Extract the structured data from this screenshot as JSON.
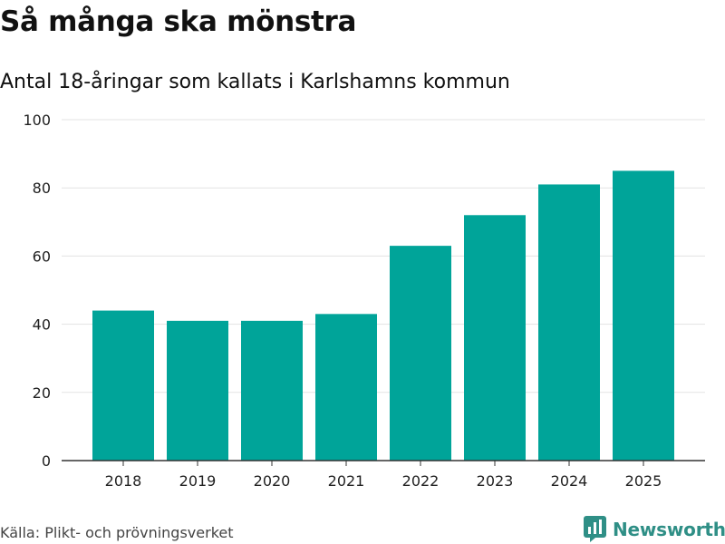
{
  "header": {
    "title": "Så många ska mönstra",
    "subtitle": "Antal 18-åringar som kallats i Karlshamns kommun"
  },
  "footer": {
    "source": "Källa: Plikt- och prövningsverket",
    "brand": "Newsworthy",
    "brand_icon": "bar-chart-logo-icon"
  },
  "colors": {
    "bar": "#00a499",
    "brand": "#2f8f86",
    "grid": "#e3e3e3",
    "axis": "#333333"
  },
  "chart_data": {
    "type": "bar",
    "title": "Så många ska mönstra",
    "subtitle": "Antal 18-åringar som kallats i Karlshamns kommun",
    "categories": [
      "2018",
      "2019",
      "2020",
      "2021",
      "2022",
      "2023",
      "2024",
      "2025"
    ],
    "values": [
      44,
      41,
      41,
      43,
      63,
      72,
      81,
      85
    ],
    "xlabel": "",
    "ylabel": "",
    "ylim": [
      0,
      100
    ],
    "yticks": [
      0,
      20,
      40,
      60,
      80,
      100
    ],
    "grid": true,
    "legend": "none"
  }
}
